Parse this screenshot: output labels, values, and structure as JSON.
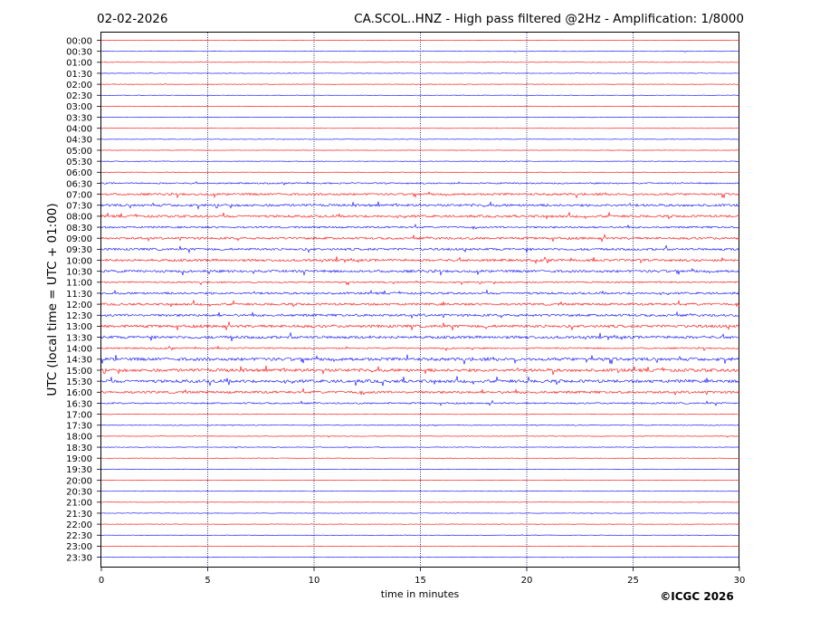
{
  "header": {
    "date": "02-02-2026",
    "title": "CA.SCOL..HNZ - High pass filtered @2Hz - Amplification: 1/8000"
  },
  "credit": "©ICGC 2026",
  "chart_data": {
    "type": "line",
    "title": "CA.SCOL..HNZ - High pass filtered @2Hz - Amplification: 1/8000",
    "xlabel": "time in minutes",
    "ylabel": "UTC (local time = UTC + 01:00)",
    "xlim": [
      0,
      30
    ],
    "xticks": [
      "0",
      "5",
      "10",
      "15",
      "20",
      "25",
      "30"
    ],
    "grid": "vertical dotted at every 5 minutes",
    "trace_colors": [
      "#ff0000",
      "#0000ff"
    ],
    "row_labels": [
      "00:00",
      "00:30",
      "01:00",
      "01:30",
      "02:00",
      "02:30",
      "03:00",
      "03:30",
      "04:00",
      "04:30",
      "05:00",
      "05:30",
      "06:00",
      "06:30",
      "07:00",
      "07:30",
      "08:00",
      "08:30",
      "09:00",
      "09:30",
      "10:00",
      "10:30",
      "11:00",
      "11:30",
      "12:00",
      "12:30",
      "13:00",
      "13:30",
      "14:00",
      "14:30",
      "15:00",
      "15:30",
      "16:00",
      "16:30",
      "17:00",
      "17:30",
      "18:00",
      "18:30",
      "19:00",
      "19:30",
      "20:00",
      "20:30",
      "21:00",
      "21:30",
      "22:00",
      "22:30",
      "23:00",
      "23:30"
    ],
    "row_activity": [
      0.3,
      0.3,
      0.3,
      0.3,
      0.3,
      0.3,
      0.3,
      0.3,
      0.3,
      0.3,
      0.3,
      0.3,
      0.4,
      0.9,
      1.4,
      1.6,
      1.6,
      1.2,
      1.5,
      1.5,
      1.6,
      1.6,
      1.0,
      1.4,
      1.5,
      1.6,
      1.8,
      1.8,
      1.0,
      2.0,
      2.0,
      2.0,
      1.6,
      1.0,
      0.5,
      0.5,
      0.4,
      0.4,
      0.3,
      0.3,
      0.3,
      0.3,
      0.3,
      0.3,
      0.3,
      0.3,
      0.3,
      0.4
    ]
  }
}
